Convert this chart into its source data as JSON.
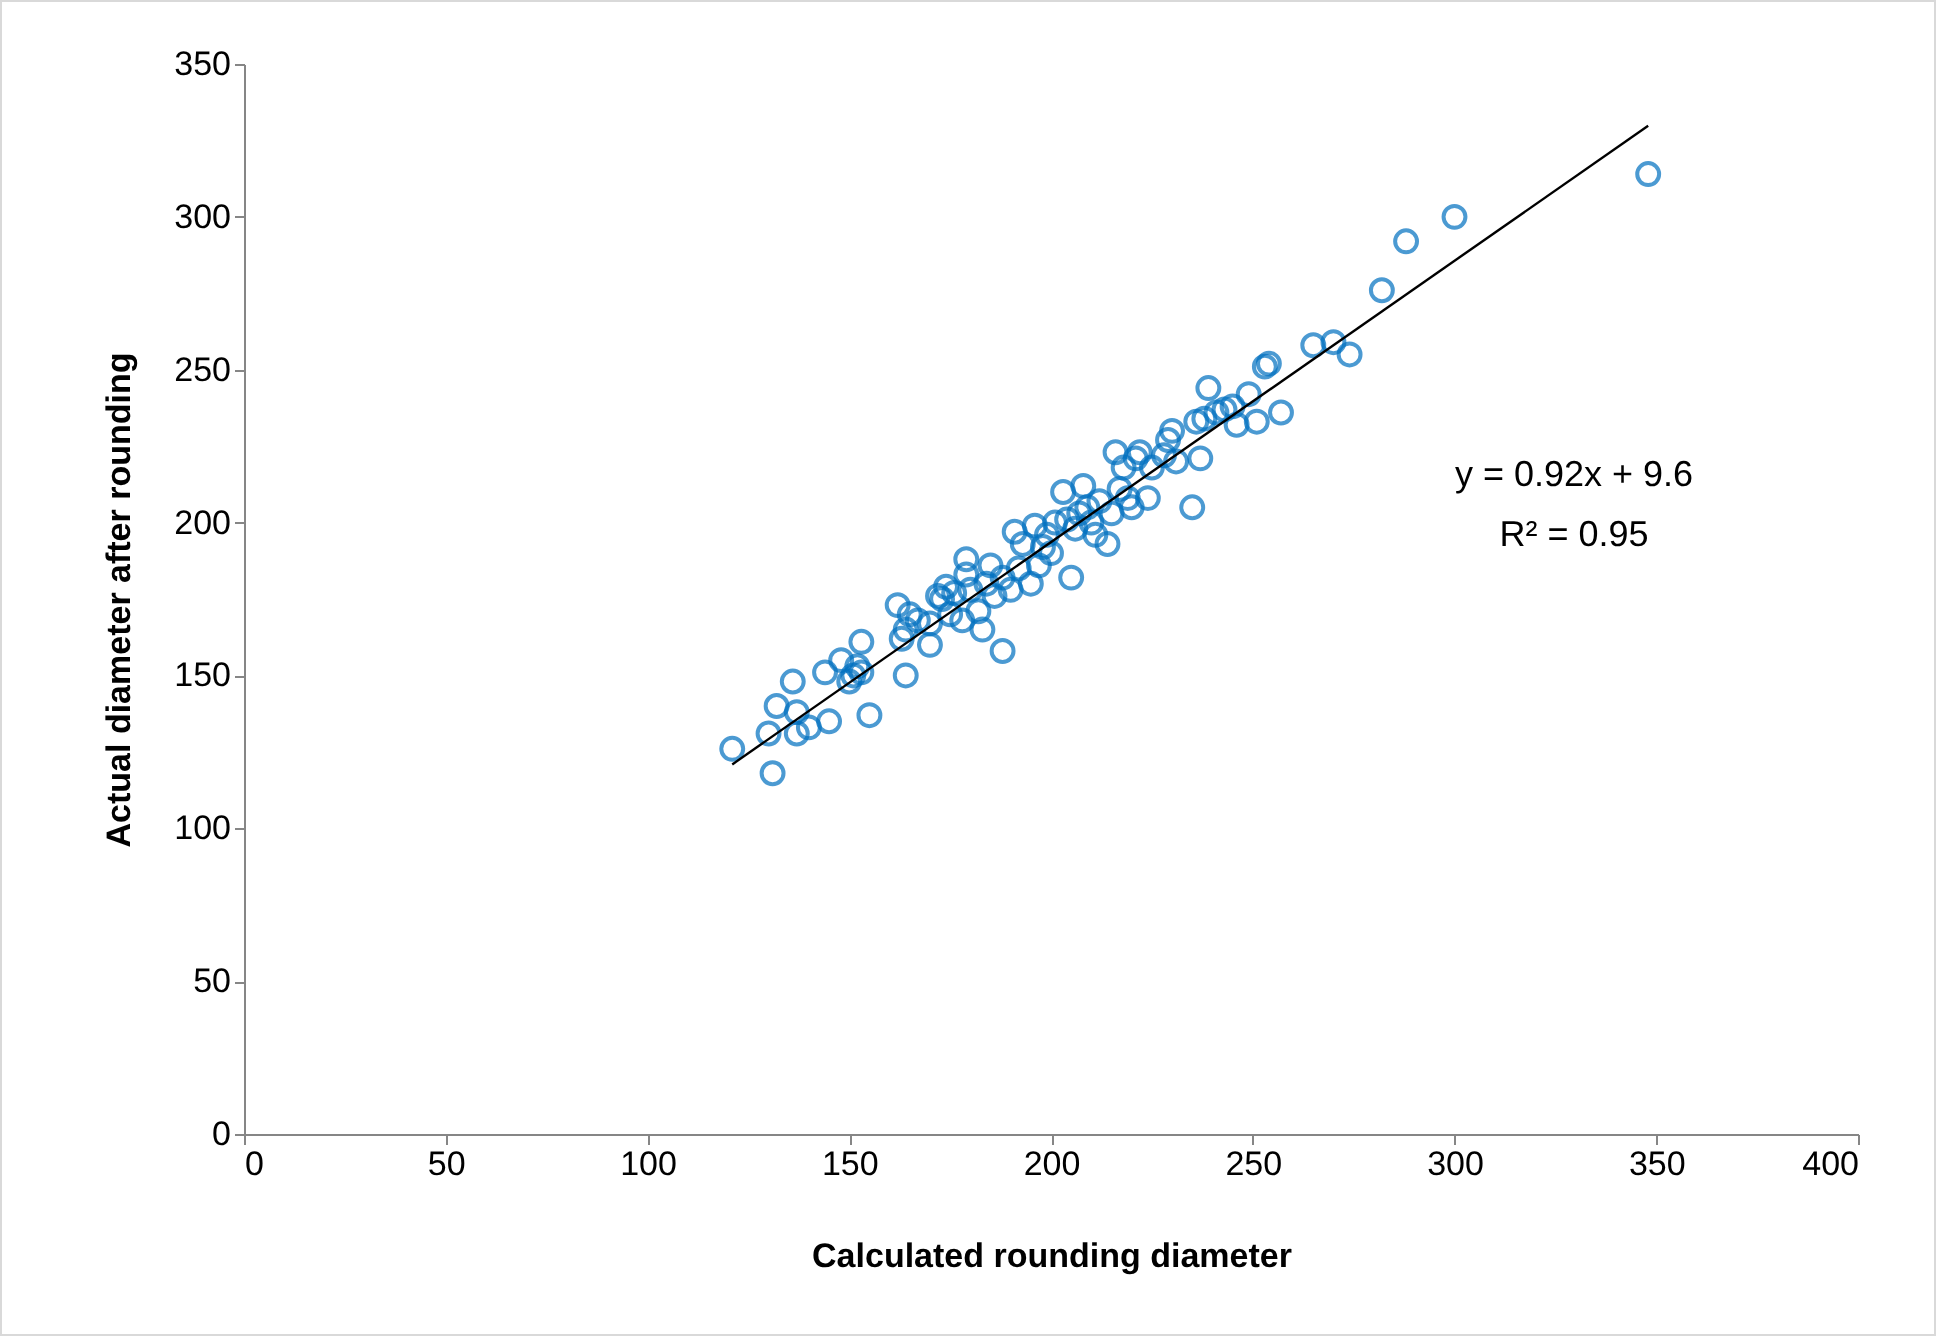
{
  "chart_data": {
    "type": "scatter",
    "xlabel": "Calculated rounding diameter",
    "ylabel": "Actual diameter after rounding",
    "xlim": [
      0,
      400
    ],
    "xticks": [
      0,
      50,
      100,
      150,
      200,
      250,
      300,
      350,
      400
    ],
    "ylim": [
      0,
      350
    ],
    "yticks": [
      0,
      50,
      100,
      150,
      200,
      250,
      300,
      350
    ],
    "series": [
      {
        "marker": "circle",
        "color": "#0070c0",
        "x": [
          121,
          130,
          131,
          132,
          136,
          137,
          137,
          140,
          144,
          145,
          148,
          150,
          151,
          152,
          153,
          153,
          155,
          162,
          163,
          164,
          164,
          165,
          167,
          170,
          170,
          172,
          173,
          174,
          175,
          176,
          178,
          179,
          179,
          180,
          182,
          183,
          184,
          185,
          186,
          188,
          188,
          190,
          191,
          192,
          193,
          195,
          196,
          197,
          198,
          199,
          200,
          201,
          203,
          204,
          205,
          206,
          207,
          208,
          209,
          210,
          211,
          212,
          214,
          215,
          216,
          217,
          218,
          219,
          220,
          221,
          222,
          224,
          225,
          228,
          229,
          230,
          231,
          235,
          236,
          237,
          238,
          239,
          241,
          243,
          245,
          246,
          249,
          251,
          253,
          254,
          257,
          265,
          270,
          274,
          282,
          288,
          300,
          348
        ],
        "values": [
          126,
          131,
          118,
          140,
          148,
          131,
          138,
          133,
          151,
          135,
          155,
          148,
          150,
          153,
          161,
          151,
          137,
          173,
          162,
          150,
          165,
          170,
          168,
          160,
          167,
          176,
          175,
          179,
          170,
          177,
          168,
          188,
          183,
          178,
          171,
          165,
          180,
          186,
          176,
          158,
          182,
          178,
          197,
          185,
          193,
          180,
          199,
          186,
          192,
          196,
          190,
          200,
          210,
          201,
          182,
          198,
          203,
          212,
          205,
          200,
          196,
          207,
          193,
          203,
          223,
          211,
          218,
          208,
          205,
          221,
          223,
          208,
          218,
          222,
          227,
          230,
          220,
          205,
          233,
          221,
          234,
          244,
          236,
          237,
          238,
          232,
          242,
          233,
          251,
          252,
          236,
          258,
          259,
          255,
          276,
          292,
          300,
          314
        ]
      },
      {
        "type": "line",
        "marker": "none",
        "color": "#000000",
        "x": [
          121,
          348
        ],
        "values": [
          120.9,
          329.8
        ]
      }
    ],
    "annotations": [
      "y = 0.92x + 9.6",
      "R² = 0.95"
    ]
  }
}
